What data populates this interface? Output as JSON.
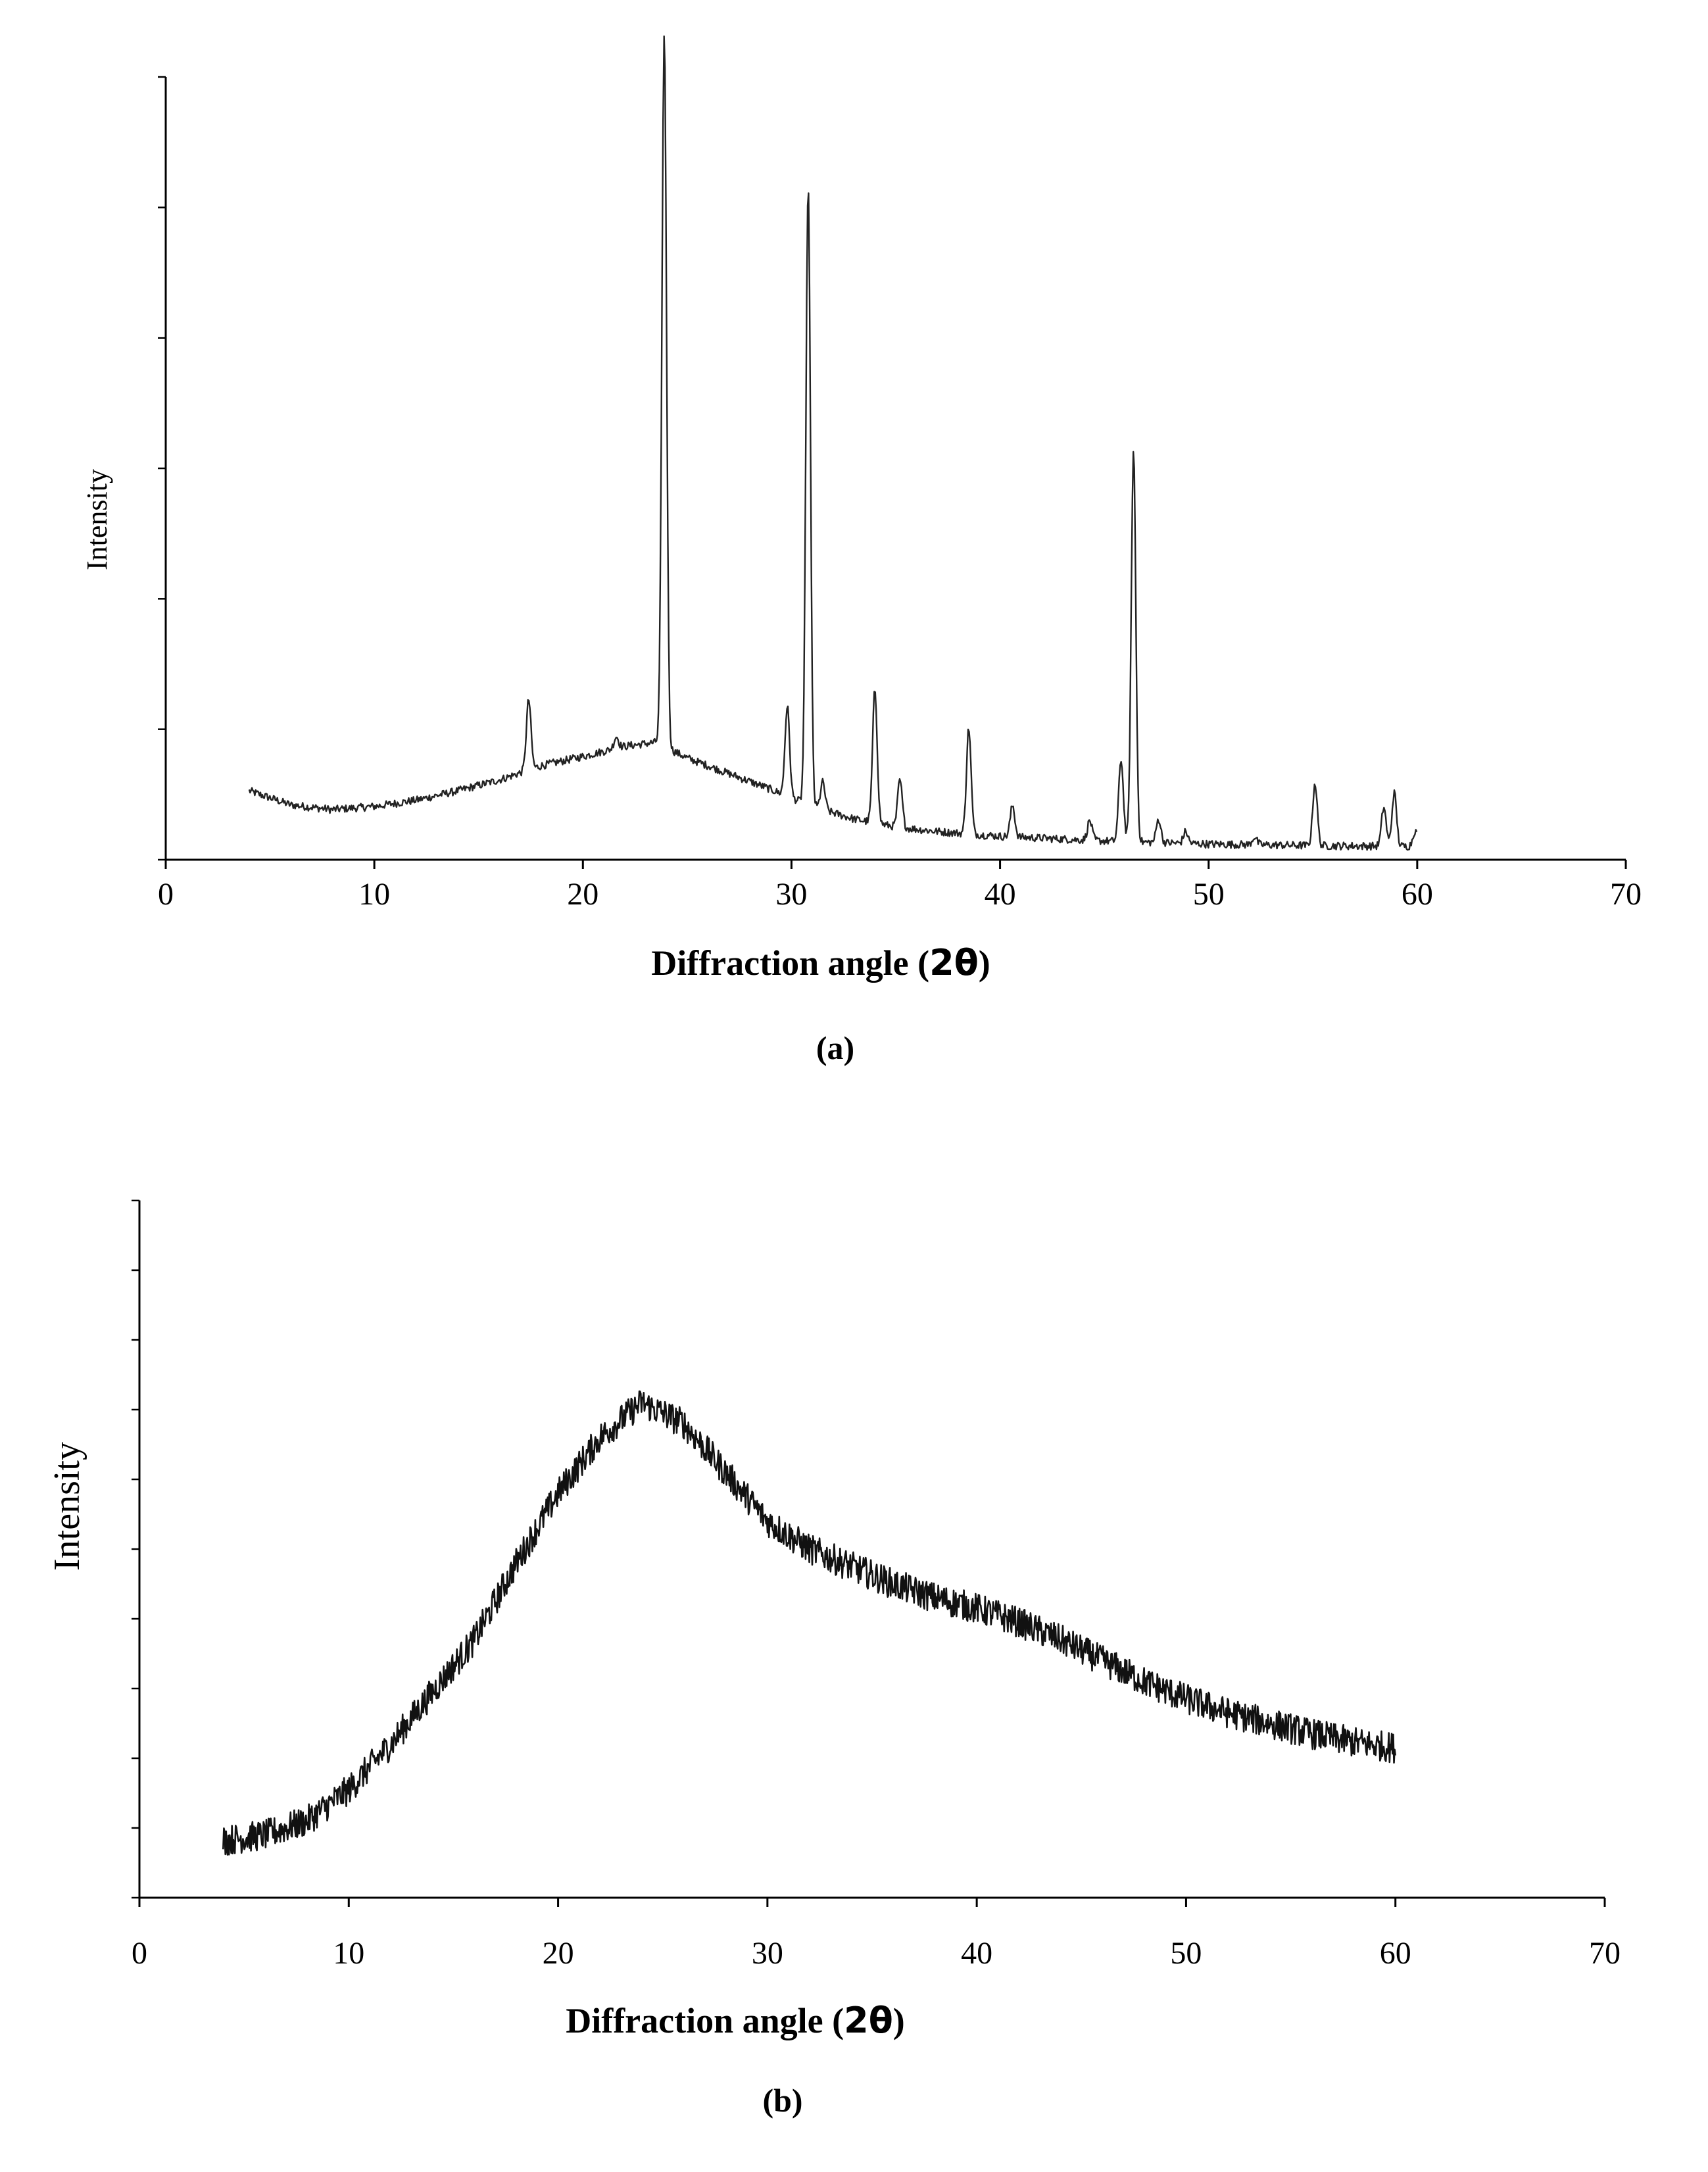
{
  "chart_data": [
    {
      "type": "line",
      "panel_label": "(a)",
      "xlabel_prefix": "Diffraction angle (",
      "xlabel_symbol": "2θ",
      "xlabel_suffix": ")",
      "ylabel": "Intensity",
      "xlim": [
        0,
        70
      ],
      "xticks": [
        0,
        10,
        20,
        30,
        40,
        50,
        60,
        70
      ],
      "ylim": [
        0,
        100
      ],
      "data_x_range": [
        4,
        60
      ],
      "background": [
        [
          4,
          8.8
        ],
        [
          6,
          7.0
        ],
        [
          8,
          6.4
        ],
        [
          10,
          6.8
        ],
        [
          12,
          7.6
        ],
        [
          14,
          8.8
        ],
        [
          16,
          10.2
        ],
        [
          18,
          12.0
        ],
        [
          20,
          13.2
        ],
        [
          22,
          14.5
        ],
        [
          23.5,
          15.0
        ],
        [
          25,
          13.0
        ],
        [
          27,
          11.0
        ],
        [
          29,
          9.0
        ],
        [
          31,
          6.8
        ],
        [
          33,
          5.2
        ],
        [
          35,
          4.2
        ],
        [
          37,
          3.6
        ],
        [
          40,
          3.0
        ],
        [
          45,
          2.4
        ],
        [
          50,
          2.0
        ],
        [
          55,
          1.8
        ],
        [
          60,
          1.7
        ]
      ],
      "peaks": [
        {
          "x": 17.4,
          "height": 9.0
        },
        {
          "x": 21.6,
          "height": 1.5
        },
        {
          "x": 23.9,
          "height": 91.0
        },
        {
          "x": 29.8,
          "height": 11.5
        },
        {
          "x": 30.8,
          "height": 79.0
        },
        {
          "x": 31.5,
          "height": 3.5
        },
        {
          "x": 34.0,
          "height": 17.0
        },
        {
          "x": 35.2,
          "height": 6.0
        },
        {
          "x": 38.5,
          "height": 13.5
        },
        {
          "x": 40.6,
          "height": 4.0
        },
        {
          "x": 44.3,
          "height": 2.5
        },
        {
          "x": 45.8,
          "height": 10.5
        },
        {
          "x": 46.4,
          "height": 50.0
        },
        {
          "x": 47.6,
          "height": 3.0
        },
        {
          "x": 48.9,
          "height": 1.5
        },
        {
          "x": 52.2,
          "height": 1.0
        },
        {
          "x": 55.1,
          "height": 8.0
        },
        {
          "x": 58.4,
          "height": 5.0
        },
        {
          "x": 58.9,
          "height": 6.8
        },
        {
          "x": 59.9,
          "height": 2.0
        }
      ],
      "noise_amplitude": 0.5
    },
    {
      "type": "line",
      "panel_label": "(b)",
      "xlabel_prefix": "Diffraction angle (",
      "xlabel_symbol": "2θ",
      "xlabel_suffix": ")",
      "ylabel": "Intensity",
      "xlim": [
        0,
        70
      ],
      "xticks": [
        0,
        10,
        20,
        30,
        40,
        50,
        60,
        70
      ],
      "ylim": [
        0,
        100
      ],
      "data_x_range": [
        4,
        60
      ],
      "series": [
        [
          4,
          8.2
        ],
        [
          6,
          9.0
        ],
        [
          8,
          11.0
        ],
        [
          10,
          15.5
        ],
        [
          12,
          22.0
        ],
        [
          14,
          29.5
        ],
        [
          16,
          37.0
        ],
        [
          18,
          48.0
        ],
        [
          20,
          58.0
        ],
        [
          22,
          66.0
        ],
        [
          24,
          71.0
        ],
        [
          26,
          68.0
        ],
        [
          28,
          61.0
        ],
        [
          30,
          54.0
        ],
        [
          32,
          50.0
        ],
        [
          34,
          47.5
        ],
        [
          36,
          45.0
        ],
        [
          38,
          43.0
        ],
        [
          40,
          41.5
        ],
        [
          42,
          39.5
        ],
        [
          44,
          37.0
        ],
        [
          46,
          34.0
        ],
        [
          48,
          31.0
        ],
        [
          50,
          28.5
        ],
        [
          52,
          26.5
        ],
        [
          54,
          25.0
        ],
        [
          56,
          23.5
        ],
        [
          58,
          22.3
        ],
        [
          60,
          21.5
        ]
      ],
      "noise_amplitude": 2.2
    }
  ]
}
